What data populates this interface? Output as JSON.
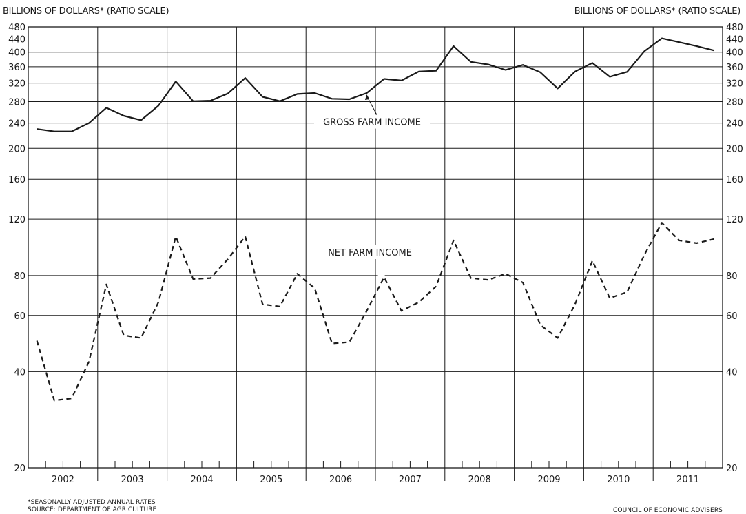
{
  "header": {
    "left_label": "BILLIONS OF DOLLARS* (RATIO SCALE)",
    "right_label": "BILLIONS OF DOLLARS* (RATIO SCALE)"
  },
  "footer": {
    "note": "*SEASONALLY ADJUSTED ANNUAL RATES",
    "source": "SOURCE: DEPARTMENT OF AGRICULTURE",
    "credit": "COUNCIL OF ECONOMIC ADVISERS"
  },
  "chart_data": {
    "type": "line",
    "title": "",
    "xlabel": "",
    "ylabel": "BILLIONS OF DOLLARS* (RATIO SCALE)",
    "y_scale": "log",
    "ylim": [
      20,
      480
    ],
    "y_ticks": [
      20,
      40,
      60,
      80,
      120,
      160,
      200,
      240,
      280,
      320,
      360,
      400,
      440,
      480
    ],
    "grid": "horizontal lines at tick values",
    "years": [
      "2002",
      "2003",
      "2004",
      "2005",
      "2006",
      "2007",
      "2008",
      "2009",
      "2010",
      "2011"
    ],
    "x": [
      "2002-Q1",
      "2002-Q2",
      "2002-Q3",
      "2002-Q4",
      "2003-Q1",
      "2003-Q2",
      "2003-Q3",
      "2003-Q4",
      "2004-Q1",
      "2004-Q2",
      "2004-Q3",
      "2004-Q4",
      "2005-Q1",
      "2005-Q2",
      "2005-Q3",
      "2005-Q4",
      "2006-Q1",
      "2006-Q2",
      "2006-Q3",
      "2006-Q4",
      "2007-Q1",
      "2007-Q2",
      "2007-Q3",
      "2007-Q4",
      "2008-Q1",
      "2008-Q2",
      "2008-Q3",
      "2008-Q4",
      "2009-Q1",
      "2009-Q2",
      "2009-Q3",
      "2009-Q4",
      "2010-Q1",
      "2010-Q2",
      "2010-Q3",
      "2010-Q4",
      "2011-Q1",
      "2011-Q2",
      "2011-Q3",
      "2011-Q4"
    ],
    "series": [
      {
        "name": "GROSS FARM INCOME",
        "style": "solid",
        "values": [
          230,
          226,
          226,
          240,
          268,
          253,
          245,
          272,
          324,
          281,
          282,
          297,
          332,
          290,
          281,
          296,
          298,
          286,
          285,
          298,
          330,
          326,
          348,
          350,
          418,
          373,
          366,
          352,
          365,
          346,
          308,
          348,
          370,
          335,
          347,
          403,
          442,
          430,
          418,
          405
        ]
      },
      {
        "name": "NET FARM INCOME",
        "style": "dashed",
        "values": [
          50,
          32.5,
          33,
          43,
          75,
          52,
          51,
          66,
          106,
          78,
          78.5,
          90,
          106,
          65,
          64,
          81,
          73,
          49,
          49.5,
          62,
          79,
          62,
          66,
          74,
          103,
          78.5,
          77.5,
          81,
          76,
          56,
          51,
          65,
          89,
          68,
          71,
          93,
          117,
          103,
          101,
          104
        ]
      }
    ],
    "annotations": [
      {
        "text": "GROSS FARM INCOME",
        "series": "GROSS FARM INCOME"
      },
      {
        "text": "NET FARM INCOME",
        "series": "NET FARM INCOME"
      }
    ]
  }
}
